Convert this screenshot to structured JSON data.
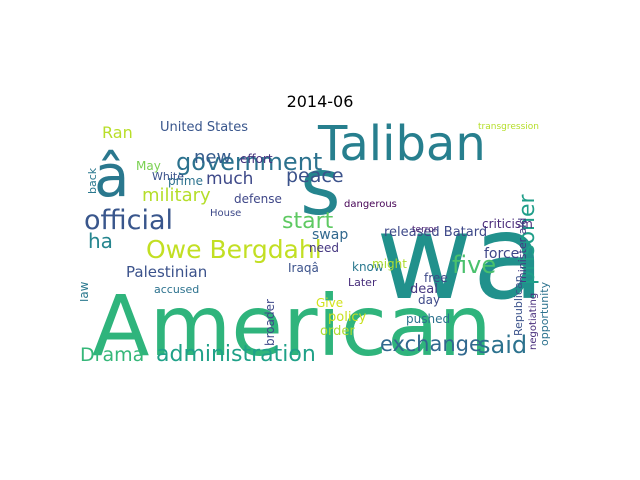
{
  "figure": {
    "title": "2014-06"
  },
  "wordcloud": {
    "background": "#ffffff",
    "words": [
      {
        "text": "American",
        "color": "#2fb47c"
      },
      {
        "text": "wa",
        "color": "#21918c"
      },
      {
        "text": "s",
        "color": "#25858e"
      },
      {
        "text": "Taliban",
        "color": "#277f8e"
      },
      {
        "text": "â",
        "color": "#2a788e"
      },
      {
        "text": "government",
        "color": "#2c728e"
      },
      {
        "text": "official",
        "color": "#39568c"
      },
      {
        "text": "Owe Bergdahl",
        "color": "#c2df23"
      },
      {
        "text": "administration",
        "color": "#1fa188"
      },
      {
        "text": "Drama",
        "color": "#35b779"
      },
      {
        "text": "exchange",
        "color": "#31688e"
      },
      {
        "text": "said",
        "color": "#2c728e"
      },
      {
        "text": "prisoner",
        "color": "#1f9e89"
      },
      {
        "text": "five",
        "color": "#4ac16d"
      },
      {
        "text": "start",
        "color": "#5ec962"
      },
      {
        "text": "peace",
        "color": "#3b528b"
      },
      {
        "text": "new",
        "color": "#365c8d"
      },
      {
        "text": "much",
        "color": "#3e4989"
      },
      {
        "text": "military",
        "color": "#b5de2b"
      },
      {
        "text": "ha",
        "color": "#25858e"
      },
      {
        "text": "Palestinian",
        "color": "#3b528b"
      },
      {
        "text": "United States",
        "color": "#39568c"
      },
      {
        "text": "Ran",
        "color": "#b8de29"
      },
      {
        "text": "released Batard",
        "color": "#3e4989"
      },
      {
        "text": "criticism",
        "color": "#482878"
      },
      {
        "text": "force",
        "color": "#3f4788"
      },
      {
        "text": "swap",
        "color": "#31688e"
      },
      {
        "text": "law",
        "color": "#2a788e"
      },
      {
        "text": "policy",
        "color": "#c8e020"
      },
      {
        "text": "order",
        "color": "#addc30"
      },
      {
        "text": "broader",
        "color": "#3e4989"
      },
      {
        "text": "day",
        "color": "#3e4989"
      },
      {
        "text": "deal",
        "color": "#453781"
      },
      {
        "text": "free",
        "color": "#3e4989"
      },
      {
        "text": "need",
        "color": "#453781"
      },
      {
        "text": "know",
        "color": "#2a788e"
      },
      {
        "text": "Iraqâ",
        "color": "#3b528b"
      },
      {
        "text": "Later",
        "color": "#472d7b"
      },
      {
        "text": "accused",
        "color": "#2c728e"
      },
      {
        "text": "defense",
        "color": "#3f4788"
      },
      {
        "text": "prime",
        "color": "#2c728e"
      },
      {
        "text": "effort",
        "color": "#46327e"
      },
      {
        "text": "May",
        "color": "#7ad151"
      },
      {
        "text": "White",
        "color": "#3b528b"
      },
      {
        "text": "back",
        "color": "#2a788e"
      },
      {
        "text": "pushed",
        "color": "#2c728e"
      },
      {
        "text": "Give",
        "color": "#d2e21b"
      },
      {
        "text": "might",
        "color": "#addc30"
      },
      {
        "text": "minister aid",
        "color": "#443983"
      },
      {
        "text": "Republican",
        "color": "#3b528b"
      },
      {
        "text": "opportunity",
        "color": "#2c728e"
      },
      {
        "text": "negotiating",
        "color": "#472d7b"
      },
      {
        "text": "dangerous",
        "color": "#440154"
      },
      {
        "text": "House",
        "color": "#3e4989"
      },
      {
        "text": "transgression",
        "color": "#b5de2b"
      },
      {
        "text": "terror",
        "color": "#481f70"
      }
    ]
  }
}
